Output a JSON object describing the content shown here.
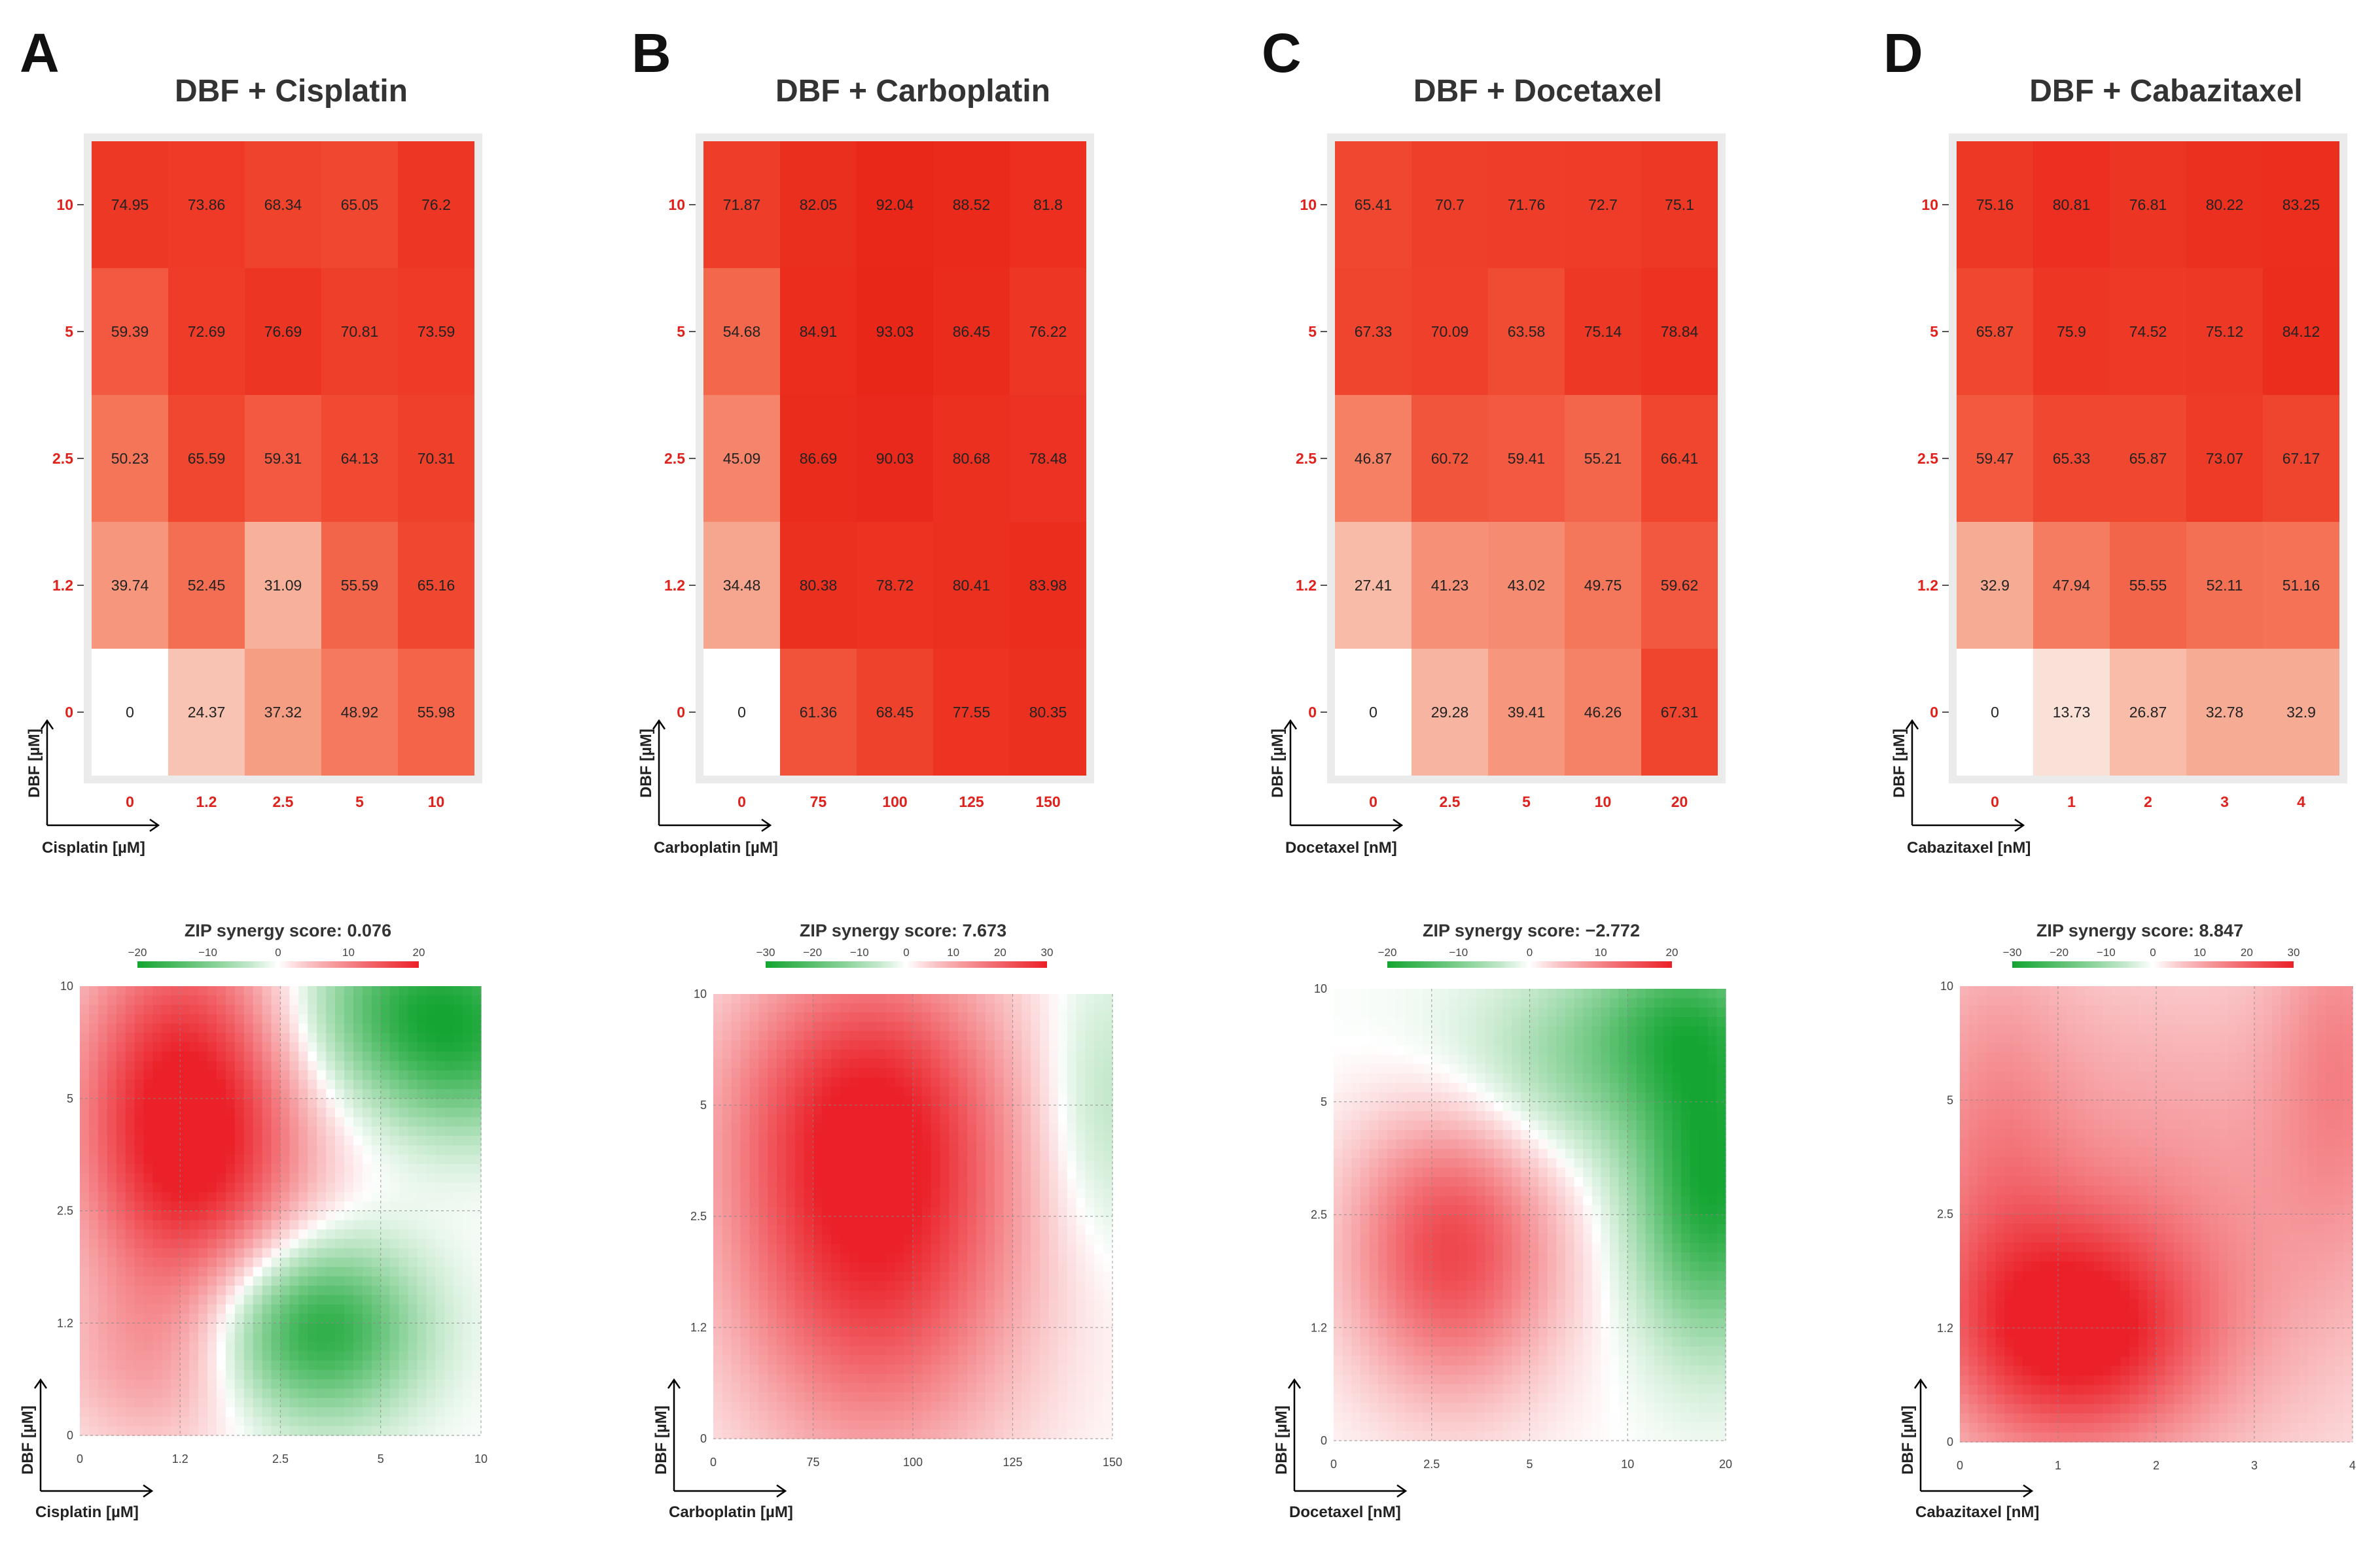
{
  "figure": {
    "panels": [
      {
        "letter": "A",
        "title": "DBF + Cisplatin",
        "drug_axis_label": "Cisplatin [µM]",
        "dbf_axis_label": "DBF [µM]",
        "synergy_title": "ZIP synergy score: 0.076",
        "legend_ticks": [
          "−20",
          "−10",
          "0",
          "10",
          "20"
        ],
        "legend_range": 20
      },
      {
        "letter": "B",
        "title": "DBF + Carboplatin",
        "drug_axis_label": "Carboplatin [µM]",
        "dbf_axis_label": "DBF [µM]",
        "synergy_title": "ZIP synergy score: 7.673",
        "legend_ticks": [
          "−30",
          "−20",
          "−10",
          "0",
          "10",
          "20",
          "30"
        ],
        "legend_range": 30
      },
      {
        "letter": "C",
        "title": "DBF + Docetaxel",
        "drug_axis_label": "Docetaxel [nM]",
        "dbf_axis_label": "DBF [µM]",
        "synergy_title": "ZIP synergy score: −2.772",
        "legend_ticks": [
          "−20",
          "−10",
          "0",
          "10",
          "20"
        ],
        "legend_range": 20
      },
      {
        "letter": "D",
        "title": "DBF + Cabazitaxel",
        "drug_axis_label": "Cabazitaxel [nM]",
        "dbf_axis_label": "DBF [µM]",
        "synergy_title": "ZIP synergy score: 8.847",
        "legend_ticks": [
          "−30",
          "−20",
          "−10",
          "0",
          "10",
          "20",
          "30"
        ],
        "legend_range": 30
      }
    ]
  },
  "chart_data": [
    {
      "type": "heatmap",
      "title": "DBF + Cisplatin",
      "xlabel": "Cisplatin [µM]",
      "ylabel": "DBF [µM]",
      "x_categories": [
        "0",
        "1.2",
        "2.5",
        "5",
        "10"
      ],
      "y_categories": [
        "0",
        "1.2",
        "2.5",
        "5",
        "10"
      ],
      "values": [
        [
          0,
          24.37,
          37.32,
          48.92,
          55.98
        ],
        [
          39.74,
          52.45,
          31.09,
          55.59,
          65.16
        ],
        [
          50.23,
          65.59,
          59.31,
          64.13,
          70.31
        ],
        [
          59.39,
          72.69,
          76.69,
          70.81,
          73.59
        ],
        [
          74.95,
          73.86,
          68.34,
          65.05,
          76.2
        ]
      ],
      "value_labels": [
        [
          "0",
          "24.37",
          "37.32",
          "48.92",
          "55.98"
        ],
        [
          "39.74",
          "52.45",
          "31.09",
          "55.59",
          "65.16"
        ],
        [
          "50.23",
          "65.59",
          "59.31",
          "64.13",
          "70.31"
        ],
        [
          "59.39",
          "72.69",
          "76.69",
          "70.81",
          "73.59"
        ],
        [
          "74.95",
          "73.86",
          "68.34",
          "65.05",
          "76.2"
        ]
      ]
    },
    {
      "type": "heatmap",
      "title": "DBF + Carboplatin",
      "xlabel": "Carboplatin [µM]",
      "ylabel": "DBF [µM]",
      "x_categories": [
        "0",
        "75",
        "100",
        "125",
        "150"
      ],
      "y_categories": [
        "0",
        "1.2",
        "2.5",
        "5",
        "10"
      ],
      "values": [
        [
          0,
          61.36,
          68.45,
          77.55,
          80.35
        ],
        [
          34.48,
          80.38,
          78.72,
          80.41,
          83.98
        ],
        [
          45.09,
          86.69,
          90.03,
          80.68,
          78.48
        ],
        [
          54.68,
          84.91,
          93.03,
          86.45,
          76.22
        ],
        [
          71.87,
          82.05,
          92.04,
          88.52,
          81.8
        ]
      ],
      "value_labels": [
        [
          "0",
          "61.36",
          "68.45",
          "77.55",
          "80.35"
        ],
        [
          "34.48",
          "80.38",
          "78.72",
          "80.41",
          "83.98"
        ],
        [
          "45.09",
          "86.69",
          "90.03",
          "80.68",
          "78.48"
        ],
        [
          "54.68",
          "84.91",
          "93.03",
          "86.45",
          "76.22"
        ],
        [
          "71.87",
          "82.05",
          "92.04",
          "88.52",
          "81.8"
        ]
      ]
    },
    {
      "type": "heatmap",
      "title": "DBF + Docetaxel",
      "xlabel": "Docetaxel [nM]",
      "ylabel": "DBF [µM]",
      "x_categories": [
        "0",
        "2.5",
        "5",
        "10",
        "20"
      ],
      "y_categories": [
        "0",
        "1.2",
        "2.5",
        "5",
        "10"
      ],
      "values": [
        [
          0,
          29.28,
          39.41,
          46.26,
          67.31
        ],
        [
          27.41,
          41.23,
          43.02,
          49.75,
          59.62
        ],
        [
          46.87,
          60.72,
          59.41,
          55.21,
          66.41
        ],
        [
          67.33,
          70.09,
          63.58,
          75.14,
          78.84
        ],
        [
          65.41,
          70.7,
          71.76,
          72.7,
          75.1
        ]
      ],
      "value_labels": [
        [
          "0",
          "29.28",
          "39.41",
          "46.26",
          "67.31"
        ],
        [
          "27.41",
          "41.23",
          "43.02",
          "49.75",
          "59.62"
        ],
        [
          "46.87",
          "60.72",
          "59.41",
          "55.21",
          "66.41"
        ],
        [
          "67.33",
          "70.09",
          "63.58",
          "75.14",
          "78.84"
        ],
        [
          "65.41",
          "70.7",
          "71.76",
          "72.7",
          "75.1"
        ]
      ]
    },
    {
      "type": "heatmap",
      "title": "DBF + Cabazitaxel",
      "xlabel": "Cabazitaxel [nM]",
      "ylabel": "DBF [µM]",
      "x_categories": [
        "0",
        "1",
        "2",
        "3",
        "4"
      ],
      "y_categories": [
        "0",
        "1.2",
        "2.5",
        "5",
        "10"
      ],
      "values": [
        [
          0,
          13.73,
          26.87,
          32.78,
          32.9
        ],
        [
          32.9,
          47.94,
          55.55,
          52.11,
          51.16
        ],
        [
          59.47,
          65.33,
          65.87,
          73.07,
          67.17
        ],
        [
          65.87,
          75.9,
          74.52,
          75.12,
          84.12
        ],
        [
          75.16,
          80.81,
          76.81,
          80.22,
          83.25
        ]
      ],
      "value_labels": [
        [
          "0",
          "13.73",
          "26.87",
          "32.78",
          "32.9"
        ],
        [
          "32.9",
          "47.94",
          "55.55",
          "52.11",
          "51.16"
        ],
        [
          "59.47",
          "65.33",
          "65.87",
          "73.07",
          "67.17"
        ],
        [
          "65.87",
          "75.9",
          "74.52",
          "75.12",
          "84.12"
        ],
        [
          "75.16",
          "80.81",
          "76.81",
          "80.22",
          "83.25"
        ]
      ]
    },
    {
      "type": "heatmap",
      "title": "ZIP synergy score: 0.076",
      "xlabel": "Cisplatin [µM]",
      "ylabel": "DBF [µM]",
      "x_ticks": [
        "0",
        "1.2",
        "2.5",
        "5",
        "10"
      ],
      "y_ticks": [
        "0",
        "1.2",
        "2.5",
        "5",
        "10"
      ],
      "legend_range": [
        -20,
        20
      ],
      "hotspots": [
        {
          "x_index": 1.05,
          "y_index": 3.15,
          "value": 17,
          "spread_x": 0.8,
          "spread_y": 1.1
        },
        {
          "x_index": 1.15,
          "y_index": 2.2,
          "value": 9,
          "spread_x": 0.8,
          "spread_y": 0.9
        },
        {
          "x_index": 2.35,
          "y_index": 0.95,
          "value": -19,
          "spread_x": 0.7,
          "spread_y": 0.55
        },
        {
          "x_index": 3.5,
          "y_index": 3.8,
          "value": -18,
          "spread_x": 0.9,
          "spread_y": 0.6
        },
        {
          "x_index": 3.9,
          "y_index": 3.2,
          "value": -5,
          "spread_x": 0.6,
          "spread_y": 0.5
        },
        {
          "x_index": 0.7,
          "y_index": 0.6,
          "value": 6,
          "spread_x": 0.7,
          "spread_y": 0.6
        }
      ]
    },
    {
      "type": "heatmap",
      "title": "ZIP synergy score: 7.673",
      "xlabel": "Carboplatin [µM]",
      "ylabel": "DBF [µM]",
      "x_ticks": [
        "0",
        "75",
        "100",
        "125",
        "150"
      ],
      "y_ticks": [
        "0",
        "1.2",
        "2.5",
        "5",
        "10"
      ],
      "legend_range": [
        -30,
        30
      ],
      "hotspots": [
        {
          "x_index": 1.6,
          "y_index": 1.9,
          "value": 28,
          "spread_x": 1.05,
          "spread_y": 1.4
        },
        {
          "x_index": 1.5,
          "y_index": 3.2,
          "value": 12,
          "spread_x": 1.0,
          "spread_y": 0.9
        },
        {
          "x_index": 3.9,
          "y_index": 3.0,
          "value": -8,
          "spread_x": 0.5,
          "spread_y": 0.9
        }
      ]
    },
    {
      "type": "heatmap",
      "title": "ZIP synergy score: −2.772",
      "xlabel": "Docetaxel [nM]",
      "ylabel": "DBF [µM]",
      "x_ticks": [
        "0",
        "2.5",
        "5",
        "10",
        "20"
      ],
      "y_ticks": [
        "0",
        "1.2",
        "2.5",
        "5",
        "10"
      ],
      "legend_range": [
        -20,
        20
      ],
      "hotspots": [
        {
          "x_index": 1.2,
          "y_index": 1.7,
          "value": 16,
          "spread_x": 0.75,
          "spread_y": 0.9
        },
        {
          "x_index": 3.85,
          "y_index": 2.2,
          "value": -19,
          "spread_x": 0.55,
          "spread_y": 0.9
        },
        {
          "x_index": 2.7,
          "y_index": 3.3,
          "value": -8,
          "spread_x": 1.2,
          "spread_y": 0.6
        },
        {
          "x_index": 3.6,
          "y_index": 3.8,
          "value": -10,
          "spread_x": 0.7,
          "spread_y": 0.5
        }
      ]
    },
    {
      "type": "heatmap",
      "title": "ZIP synergy score: 8.847",
      "xlabel": "Cabazitaxel [nM]",
      "ylabel": "DBF [µM]",
      "x_ticks": [
        "0",
        "1",
        "2",
        "3",
        "4"
      ],
      "y_ticks": [
        "0",
        "1.2",
        "2.5",
        "5",
        "10"
      ],
      "legend_range": [
        -30,
        30
      ],
      "hotspots": [
        {
          "x_index": 1.2,
          "y_index": 0.95,
          "value": 24,
          "spread_x": 0.9,
          "spread_y": 0.7
        },
        {
          "x_index": 2.0,
          "y_index": 2.0,
          "value": 12,
          "spread_x": 2.0,
          "spread_y": 1.7
        },
        {
          "x_index": 3.9,
          "y_index": 3.5,
          "value": 10,
          "spread_x": 0.5,
          "spread_y": 1.2
        },
        {
          "x_index": 0.3,
          "y_index": 2.5,
          "value": 8,
          "spread_x": 0.6,
          "spread_y": 1.6
        }
      ]
    }
  ]
}
